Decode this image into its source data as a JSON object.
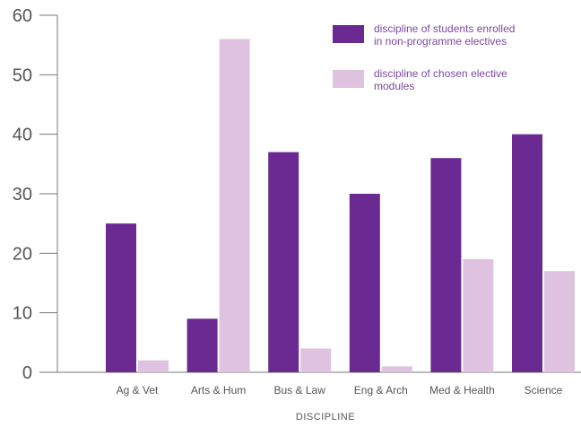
{
  "chart_data": {
    "type": "bar",
    "xlabel": "DISCIPLINE",
    "ylabel": "",
    "ylim": [
      0,
      60
    ],
    "yticks": [
      0,
      10,
      20,
      30,
      40,
      50,
      60
    ],
    "grid": false,
    "legend_position": "top-right",
    "categories": [
      "Ag & Vet",
      "Arts & Hum",
      "Bus & Law",
      "Eng & Arch",
      "Med & Health",
      "Science"
    ],
    "series": [
      {
        "name": "discipline of students enrolled in non-programme electives",
        "legend_lines": [
          "discipline of students enrolled",
          "in non-programme electives"
        ],
        "color": "#6a2a91",
        "values": [
          25,
          9,
          37,
          30,
          36,
          40
        ]
      },
      {
        "name": "discipline of chosen elective modules",
        "legend_lines": [
          "discipline of chosen elective",
          "modules"
        ],
        "color": "#dec2df",
        "values": [
          2,
          56,
          4,
          1,
          19,
          17
        ]
      }
    ]
  }
}
